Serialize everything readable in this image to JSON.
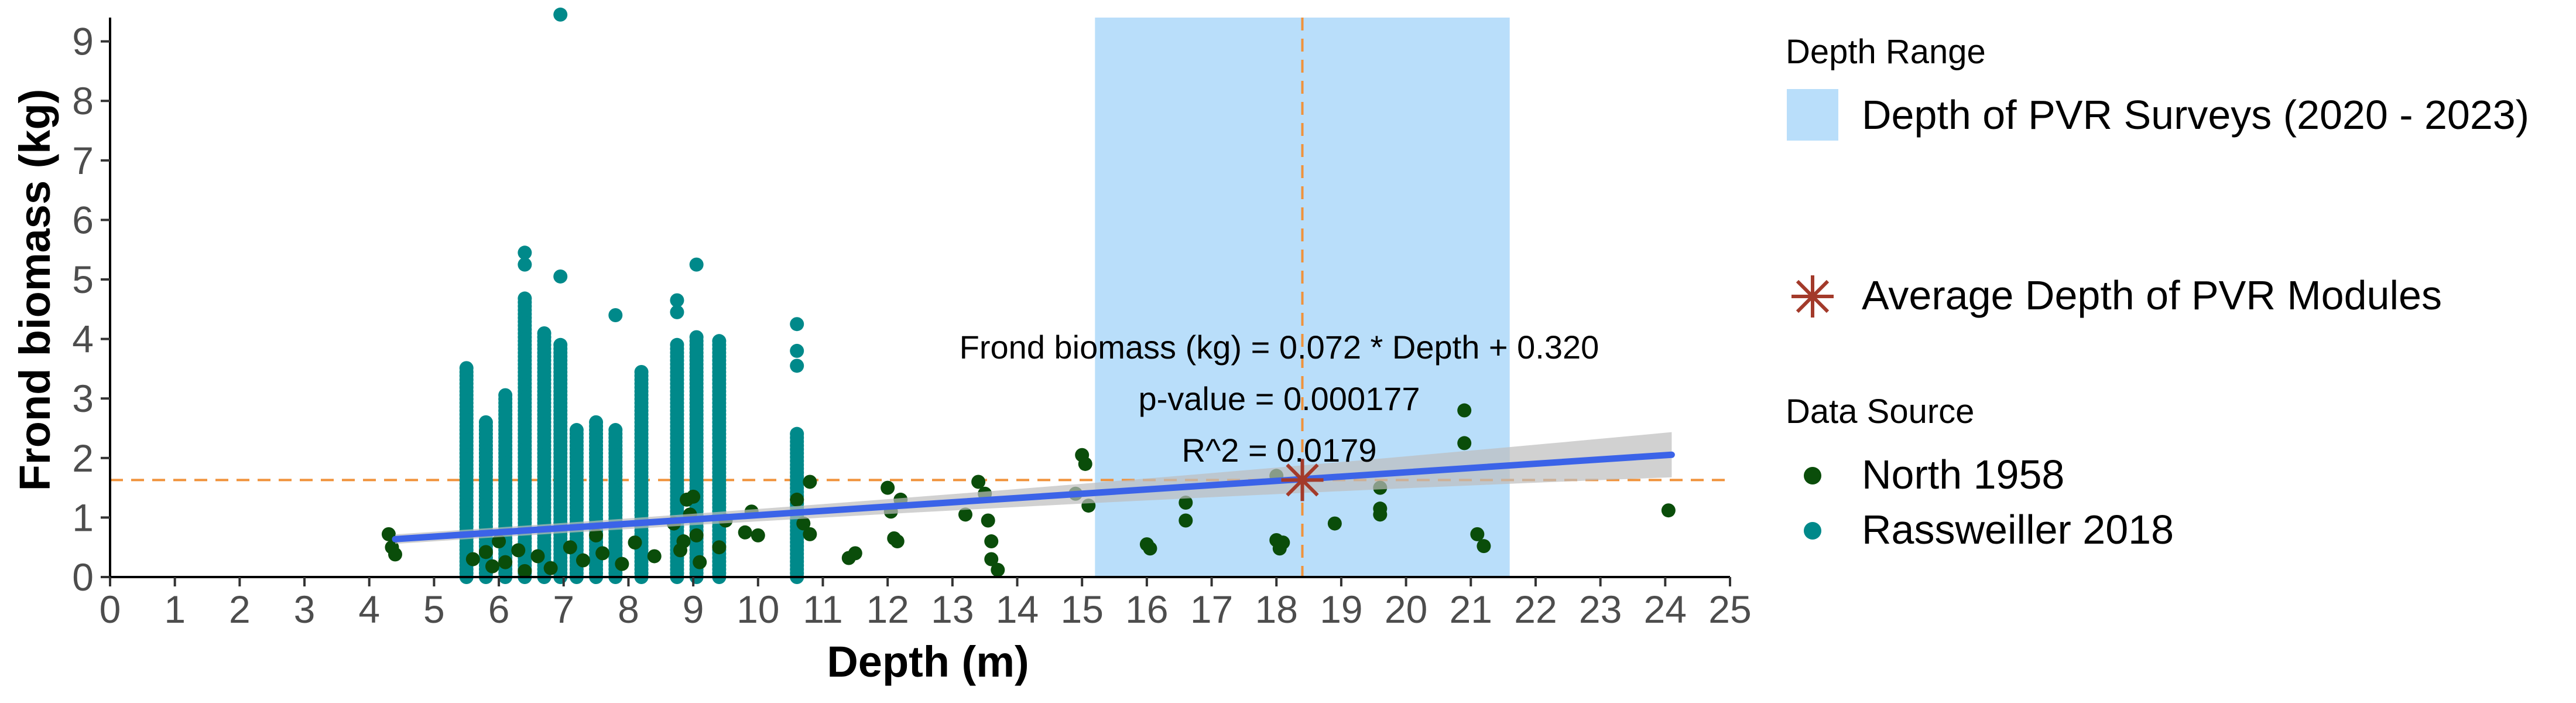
{
  "chart_data": {
    "type": "scatter",
    "title": "",
    "xlabel": "Depth (m)",
    "ylabel": "Frond biomass (kg)",
    "xlim": [
      0,
      25
    ],
    "ylim": [
      0,
      9.4
    ],
    "x_ticks": [
      0,
      1,
      2,
      3,
      4,
      5,
      6,
      7,
      8,
      9,
      10,
      11,
      12,
      13,
      14,
      15,
      16,
      17,
      18,
      19,
      20,
      21,
      22,
      23,
      24,
      25
    ],
    "y_ticks": [
      0,
      1,
      2,
      3,
      4,
      5,
      6,
      7,
      8,
      9
    ],
    "grid": false,
    "legend_position": "right",
    "colors": {
      "north": "#0a4d0a",
      "rassweiller": "#00898a",
      "depth_range": "#b9defa",
      "trend": "#3b63e8",
      "confidence": "#bdbdbd",
      "reference": "#f0923a",
      "module_marker": "#a33a2a"
    },
    "depth_range": {
      "label": "Depth of PVR Surveys (2020 - 2023)",
      "x_min": 15.2,
      "x_max": 21.6
    },
    "average_module": {
      "label": "Average Depth of PVR Modules",
      "x": 18.4,
      "y": 1.63
    },
    "trend_line": {
      "slope": 0.072,
      "intercept": 0.32,
      "x_min": 4.4,
      "x_max": 24.1,
      "ci_start_halfwidth": 0.08,
      "ci_end_halfwidth": 0.38
    },
    "annotations": [
      "Frond biomass (kg) = 0.072 * Depth + 0.320",
      "p-value = 0.000177",
      "R^2 = 0.0179"
    ],
    "legend": {
      "depth_title": "Depth Range",
      "source_title": "Data Source"
    },
    "series": [
      {
        "name": "North 1958",
        "points": [
          [
            4.3,
            0.72
          ],
          [
            4.35,
            0.5
          ],
          [
            4.4,
            0.38
          ],
          [
            5.6,
            0.3
          ],
          [
            5.8,
            0.42
          ],
          [
            5.9,
            0.18
          ],
          [
            6.0,
            0.6
          ],
          [
            6.1,
            0.25
          ],
          [
            6.3,
            0.45
          ],
          [
            6.4,
            0.1
          ],
          [
            6.6,
            0.35
          ],
          [
            6.8,
            0.15
          ],
          [
            7.1,
            0.5
          ],
          [
            7.3,
            0.28
          ],
          [
            7.5,
            0.7
          ],
          [
            7.6,
            0.4
          ],
          [
            7.9,
            0.22
          ],
          [
            8.1,
            0.58
          ],
          [
            8.4,
            0.35
          ],
          [
            8.7,
            0.9
          ],
          [
            8.8,
            0.45
          ],
          [
            8.85,
            0.6
          ],
          [
            8.9,
            1.3
          ],
          [
            8.95,
            1.05
          ],
          [
            9.0,
            1.35
          ],
          [
            9.05,
            0.7
          ],
          [
            9.1,
            0.25
          ],
          [
            9.4,
            0.5
          ],
          [
            9.5,
            0.95
          ],
          [
            9.8,
            0.75
          ],
          [
            9.9,
            1.1
          ],
          [
            10.0,
            0.7
          ],
          [
            10.6,
            1.3
          ],
          [
            10.7,
            0.9
          ],
          [
            10.8,
            0.72
          ],
          [
            10.8,
            1.6
          ],
          [
            11.4,
            0.32
          ],
          [
            11.5,
            0.4
          ],
          [
            12.0,
            1.5
          ],
          [
            12.05,
            1.1
          ],
          [
            12.1,
            0.65
          ],
          [
            12.15,
            0.6
          ],
          [
            12.2,
            1.3
          ],
          [
            13.2,
            1.05
          ],
          [
            13.4,
            1.6
          ],
          [
            13.5,
            1.4
          ],
          [
            13.55,
            0.95
          ],
          [
            13.6,
            0.6
          ],
          [
            13.6,
            0.3
          ],
          [
            13.7,
            0.12
          ],
          [
            14.9,
            1.4
          ],
          [
            15.0,
            2.05
          ],
          [
            15.05,
            1.9
          ],
          [
            15.1,
            1.2
          ],
          [
            16.0,
            0.55
          ],
          [
            16.05,
            0.48
          ],
          [
            16.6,
            1.25
          ],
          [
            16.6,
            0.95
          ],
          [
            18.0,
            1.7
          ],
          [
            18.0,
            0.62
          ],
          [
            18.05,
            0.48
          ],
          [
            18.1,
            0.58
          ],
          [
            18.9,
            0.9
          ],
          [
            19.6,
            1.15
          ],
          [
            19.6,
            1.05
          ],
          [
            19.6,
            1.5
          ],
          [
            20.9,
            2.8
          ],
          [
            20.9,
            2.25
          ],
          [
            21.1,
            0.72
          ],
          [
            21.2,
            0.52
          ],
          [
            24.05,
            1.12
          ]
        ]
      },
      {
        "name": "Rassweiller 2018",
        "columns": [
          {
            "x": 5.5,
            "min": 0.0,
            "max": 3.55,
            "extra": []
          },
          {
            "x": 5.8,
            "min": 0.0,
            "max": 2.6,
            "extra": []
          },
          {
            "x": 6.1,
            "min": 0.0,
            "max": 3.1,
            "extra": []
          },
          {
            "x": 6.4,
            "min": 0.0,
            "max": 4.7,
            "extra": [
              5.45,
              5.25
            ]
          },
          {
            "x": 6.7,
            "min": 0.0,
            "max": 4.1,
            "extra": []
          },
          {
            "x": 6.95,
            "min": 0.0,
            "max": 3.9,
            "extra": [
              5.05,
              9.45
            ]
          },
          {
            "x": 7.2,
            "min": 0.0,
            "max": 2.5,
            "extra": []
          },
          {
            "x": 7.5,
            "min": 0.0,
            "max": 2.6,
            "extra": []
          },
          {
            "x": 7.8,
            "min": 0.0,
            "max": 2.5,
            "extra": [
              4.4
            ]
          },
          {
            "x": 8.2,
            "min": 0.0,
            "max": 3.45,
            "extra": []
          },
          {
            "x": 8.75,
            "min": 0.0,
            "max": 3.95,
            "extra": [
              4.65,
              4.45
            ]
          },
          {
            "x": 9.05,
            "min": 0.0,
            "max": 4.05,
            "extra": [
              5.25
            ]
          },
          {
            "x": 9.4,
            "min": 0.0,
            "max": 4.0,
            "extra": []
          },
          {
            "x": 10.6,
            "min": 0.0,
            "max": 2.45,
            "extra": [
              4.25,
              3.8,
              3.55
            ]
          }
        ]
      }
    ]
  }
}
